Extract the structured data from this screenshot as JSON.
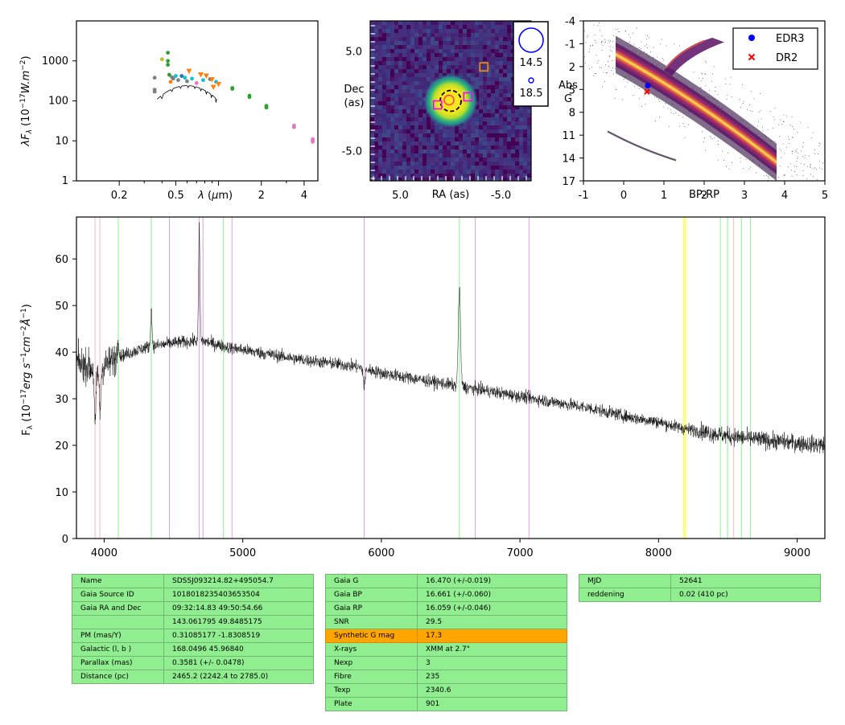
{
  "chart_data": [
    {
      "type": "scatter",
      "panel": "sed",
      "xscale": "log",
      "yscale": "log",
      "xlim": [
        0.1,
        5.0
      ],
      "ylim": [
        1,
        10000
      ],
      "xlabel": "λ (μm)",
      "ylabel": "λF_λ (10^-17 W.m^-2)",
      "xticks": [
        {
          "v": 0.2,
          "label": "0.2"
        },
        {
          "v": 0.5,
          "label": "0.5"
        },
        {
          "v": 2,
          "label": "2"
        },
        {
          "v": 4,
          "label": "4"
        }
      ],
      "yticks": [
        {
          "v": 1,
          "label": "1"
        },
        {
          "v": 10,
          "label": "10"
        },
        {
          "v": 100,
          "label": "100"
        },
        {
          "v": 1000,
          "label": "1000"
        }
      ],
      "points": [
        {
          "x": 0.355,
          "y": 380,
          "color": "#7f7f7f"
        },
        {
          "x": 0.355,
          "y": 190,
          "color": "#7f7f7f"
        },
        {
          "x": 0.355,
          "y": 170,
          "color": "#7f7f7f"
        },
        {
          "x": 0.4,
          "y": 1100,
          "color": "#bcbd22"
        },
        {
          "x": 0.44,
          "y": 1600,
          "color": "#2ca02c"
        },
        {
          "x": 0.44,
          "y": 1000,
          "color": "#2ca02c"
        },
        {
          "x": 0.44,
          "y": 800,
          "color": "#2ca02c"
        },
        {
          "x": 0.45,
          "y": 450,
          "color": "#2ca02c"
        },
        {
          "x": 0.46,
          "y": 300,
          "color": "#ff7f0e"
        },
        {
          "x": 0.47,
          "y": 390,
          "color": "#7f7f7f"
        },
        {
          "x": 0.48,
          "y": 360,
          "color": "#7f7f7f"
        },
        {
          "x": 0.5,
          "y": 420,
          "color": "#17becf"
        },
        {
          "x": 0.52,
          "y": 330,
          "color": "#7f7f7f"
        },
        {
          "x": 0.55,
          "y": 420,
          "color": "#1f77b4"
        },
        {
          "x": 0.58,
          "y": 380,
          "color": "#17becf"
        },
        {
          "x": 0.6,
          "y": 310,
          "color": "#7f7f7f"
        },
        {
          "x": 0.62,
          "y": 550,
          "color": "#ff7f0e"
        },
        {
          "x": 0.65,
          "y": 360,
          "color": "#17becf"
        },
        {
          "x": 0.7,
          "y": 280,
          "color": "#e377c2"
        },
        {
          "x": 0.75,
          "y": 450,
          "color": "#ff7f0e"
        },
        {
          "x": 0.78,
          "y": 330,
          "color": "#17becf"
        },
        {
          "x": 0.82,
          "y": 420,
          "color": "#ff7f0e"
        },
        {
          "x": 0.87,
          "y": 350,
          "color": "#7f7f7f"
        },
        {
          "x": 0.9,
          "y": 340,
          "color": "#ff7f0e"
        },
        {
          "x": 0.92,
          "y": 220,
          "color": "#ff7f0e"
        },
        {
          "x": 0.96,
          "y": 300,
          "color": "#17becf"
        },
        {
          "x": 1.0,
          "y": 260,
          "color": "#ff7f0e"
        },
        {
          "x": 1.25,
          "y": 210,
          "color": "#2ca02c"
        },
        {
          "x": 1.25,
          "y": 200,
          "color": "#2ca02c"
        },
        {
          "x": 1.65,
          "y": 135,
          "color": "#2ca02c"
        },
        {
          "x": 1.65,
          "y": 125,
          "color": "#2ca02c"
        },
        {
          "x": 2.17,
          "y": 75,
          "color": "#2ca02c"
        },
        {
          "x": 2.17,
          "y": 68,
          "color": "#2ca02c"
        },
        {
          "x": 3.4,
          "y": 24,
          "color": "#e377c2"
        },
        {
          "x": 3.4,
          "y": 22,
          "color": "#e377c2"
        },
        {
          "x": 4.6,
          "y": 11,
          "color": "#e377c2"
        },
        {
          "x": 4.6,
          "y": 10,
          "color": "#e377c2"
        },
        {
          "x": 4.6,
          "y": 9.5,
          "color": "#e377c2"
        }
      ]
    },
    {
      "type": "heatmap",
      "panel": "image",
      "xlabel": "RA (as)",
      "ylabel": "Dec (as)",
      "xlim": [
        8.0,
        -8.0
      ],
      "ylim": [
        -8.0,
        8.0
      ],
      "xticks": [
        {
          "v": 5.0,
          "label": "5.0"
        },
        {
          "v": -5.0,
          "label": "-5.0"
        }
      ],
      "yticks": [
        {
          "v": 5.0,
          "label": "5.0"
        },
        {
          "v": -5.0,
          "label": "-5.0"
        }
      ],
      "source": {
        "ra": 0,
        "dec": 0
      },
      "markers": [
        {
          "ra": 1.3,
          "dec": -0.4,
          "color": "#ff00ff"
        },
        {
          "ra": -1.7,
          "dec": 0.4,
          "color": "#ff00ff"
        },
        {
          "ra": -3.3,
          "dec": 3.4,
          "color": "#ff8c00"
        }
      ],
      "legend": [
        {
          "label": "14.5",
          "size": "large"
        },
        {
          "label": "18.5",
          "size": "small"
        }
      ]
    },
    {
      "type": "scatter",
      "panel": "hrd",
      "xlabel": "BP-RP",
      "ylabel": "Abs G",
      "xlim": [
        -1,
        5
      ],
      "ylim": [
        17,
        -4
      ],
      "xticks": [
        -1,
        0,
        1,
        2,
        3,
        4,
        5
      ],
      "yticks": [
        -4,
        -1,
        2,
        5,
        8,
        11,
        14,
        17
      ],
      "legend_position": "top-right",
      "legend": [
        {
          "label": "EDR3",
          "color": "#0000ff",
          "marker": "circle"
        },
        {
          "label": "DR2",
          "color": "#ff0000",
          "marker": "x"
        }
      ],
      "points": [
        {
          "series": "EDR3",
          "x": 0.6,
          "y": 4.5
        },
        {
          "series": "DR2",
          "x": 0.58,
          "y": 5.3
        }
      ]
    },
    {
      "type": "line",
      "panel": "spectrum",
      "xlabel": "",
      "ylabel": "F_λ (10^-17 erg s^-1 cm^-2 Å^-1)",
      "xlim": [
        3800,
        9200
      ],
      "ylim": [
        0,
        69
      ],
      "xticks": [
        4000,
        5000,
        6000,
        7000,
        8000,
        9000
      ],
      "yticks": [
        0,
        10,
        20,
        30,
        40,
        50,
        60
      ],
      "continuum": [
        [
          3800,
          38
        ],
        [
          3950,
          36
        ],
        [
          4100,
          39
        ],
        [
          4300,
          41
        ],
        [
          4500,
          42
        ],
        [
          4700,
          42.5
        ],
        [
          4900,
          41
        ],
        [
          5100,
          40
        ],
        [
          5400,
          38.5
        ],
        [
          5800,
          37
        ],
        [
          6000,
          35.5
        ],
        [
          6300,
          34
        ],
        [
          6600,
          32.5
        ],
        [
          6800,
          31.5
        ],
        [
          7000,
          30.5
        ],
        [
          7200,
          29.5
        ],
        [
          7500,
          28
        ],
        [
          7800,
          26
        ],
        [
          8000,
          25
        ],
        [
          8200,
          23.5
        ],
        [
          8500,
          22
        ],
        [
          8800,
          21
        ],
        [
          9200,
          20
        ]
      ],
      "features": [
        {
          "x": 3935,
          "h": -12,
          "w": 6
        },
        {
          "x": 3970,
          "h": -9,
          "w": 6
        },
        {
          "x": 4686,
          "h": 24,
          "w": 5
        },
        {
          "x": 4340,
          "h": 8,
          "w": 5
        },
        {
          "x": 4101,
          "h": 4,
          "w": 5
        },
        {
          "x": 6563,
          "h": 21,
          "w": 8
        },
        {
          "x": 5876,
          "h": -4,
          "w": 6
        }
      ],
      "vlines": [
        {
          "x": 3934,
          "color": "#ffb6c1"
        },
        {
          "x": 3969,
          "color": "#ffb6c1"
        },
        {
          "x": 4102,
          "color": "#90ee90"
        },
        {
          "x": 4340,
          "color": "#90ee90"
        },
        {
          "x": 4471,
          "color": "#dda0dd"
        },
        {
          "x": 4686,
          "color": "#dda0dd"
        },
        {
          "x": 4713,
          "color": "#dda0dd"
        },
        {
          "x": 4861,
          "color": "#90ee90"
        },
        {
          "x": 4922,
          "color": "#dda0dd"
        },
        {
          "x": 5876,
          "color": "#dda0dd"
        },
        {
          "x": 6563,
          "color": "#90ee90"
        },
        {
          "x": 6678,
          "color": "#dda0dd"
        },
        {
          "x": 7065,
          "color": "#dda0dd"
        },
        {
          "x": 8183,
          "color": "#ffff00"
        },
        {
          "x": 8195,
          "color": "#ffff00"
        },
        {
          "x": 8446,
          "color": "#90ee90"
        },
        {
          "x": 8498,
          "color": "#90ee90"
        },
        {
          "x": 8542,
          "color": "#ffb6c1"
        },
        {
          "x": 8598,
          "color": "#90ee90"
        },
        {
          "x": 8662,
          "color": "#90ee90"
        }
      ]
    }
  ],
  "tables": {
    "t1": [
      [
        "Name",
        "SDSSJ093214.82+495054.7"
      ],
      [
        "Gaia Source ID",
        "1018018235403653504"
      ],
      [
        "Gaia RA and Dec",
        "09:32:14.83    49:50:54.66"
      ],
      [
        "",
        "143.061795    49.8485175"
      ],
      [
        "PM (mas/Y)",
        "0.31085177    -1.8308519"
      ],
      [
        "Galactic (l, b )",
        "168.0496    45.96840"
      ],
      [
        "Parallax (mas)",
        "0.3581 (+/- 0.0478)"
      ],
      [
        "Distance (pc)",
        "2465.2 (2242.4 to 2785.0)"
      ]
    ],
    "t2": [
      [
        "Gaia G",
        "16.470 (+/-0.019)"
      ],
      [
        "Gaia BP",
        "16.661 (+/-0.060)"
      ],
      [
        "Gaia RP",
        "16.059 (+/-0.046)"
      ],
      [
        "SNR",
        "29.5"
      ],
      [
        "Synthetic G mag",
        "17.3"
      ],
      [
        "X-rays",
        "XMM at 2.7\""
      ],
      [
        "Nexp",
        "3"
      ],
      [
        "Fibre",
        "235"
      ],
      [
        "Texp",
        "2340.6"
      ],
      [
        "Plate",
        "901"
      ]
    ],
    "t3": [
      [
        "MJD",
        "52641"
      ],
      [
        "reddening",
        "0.02 (410 pc)"
      ]
    ],
    "highlight_color": "#ffa500",
    "cell_color": "#90ee90"
  }
}
